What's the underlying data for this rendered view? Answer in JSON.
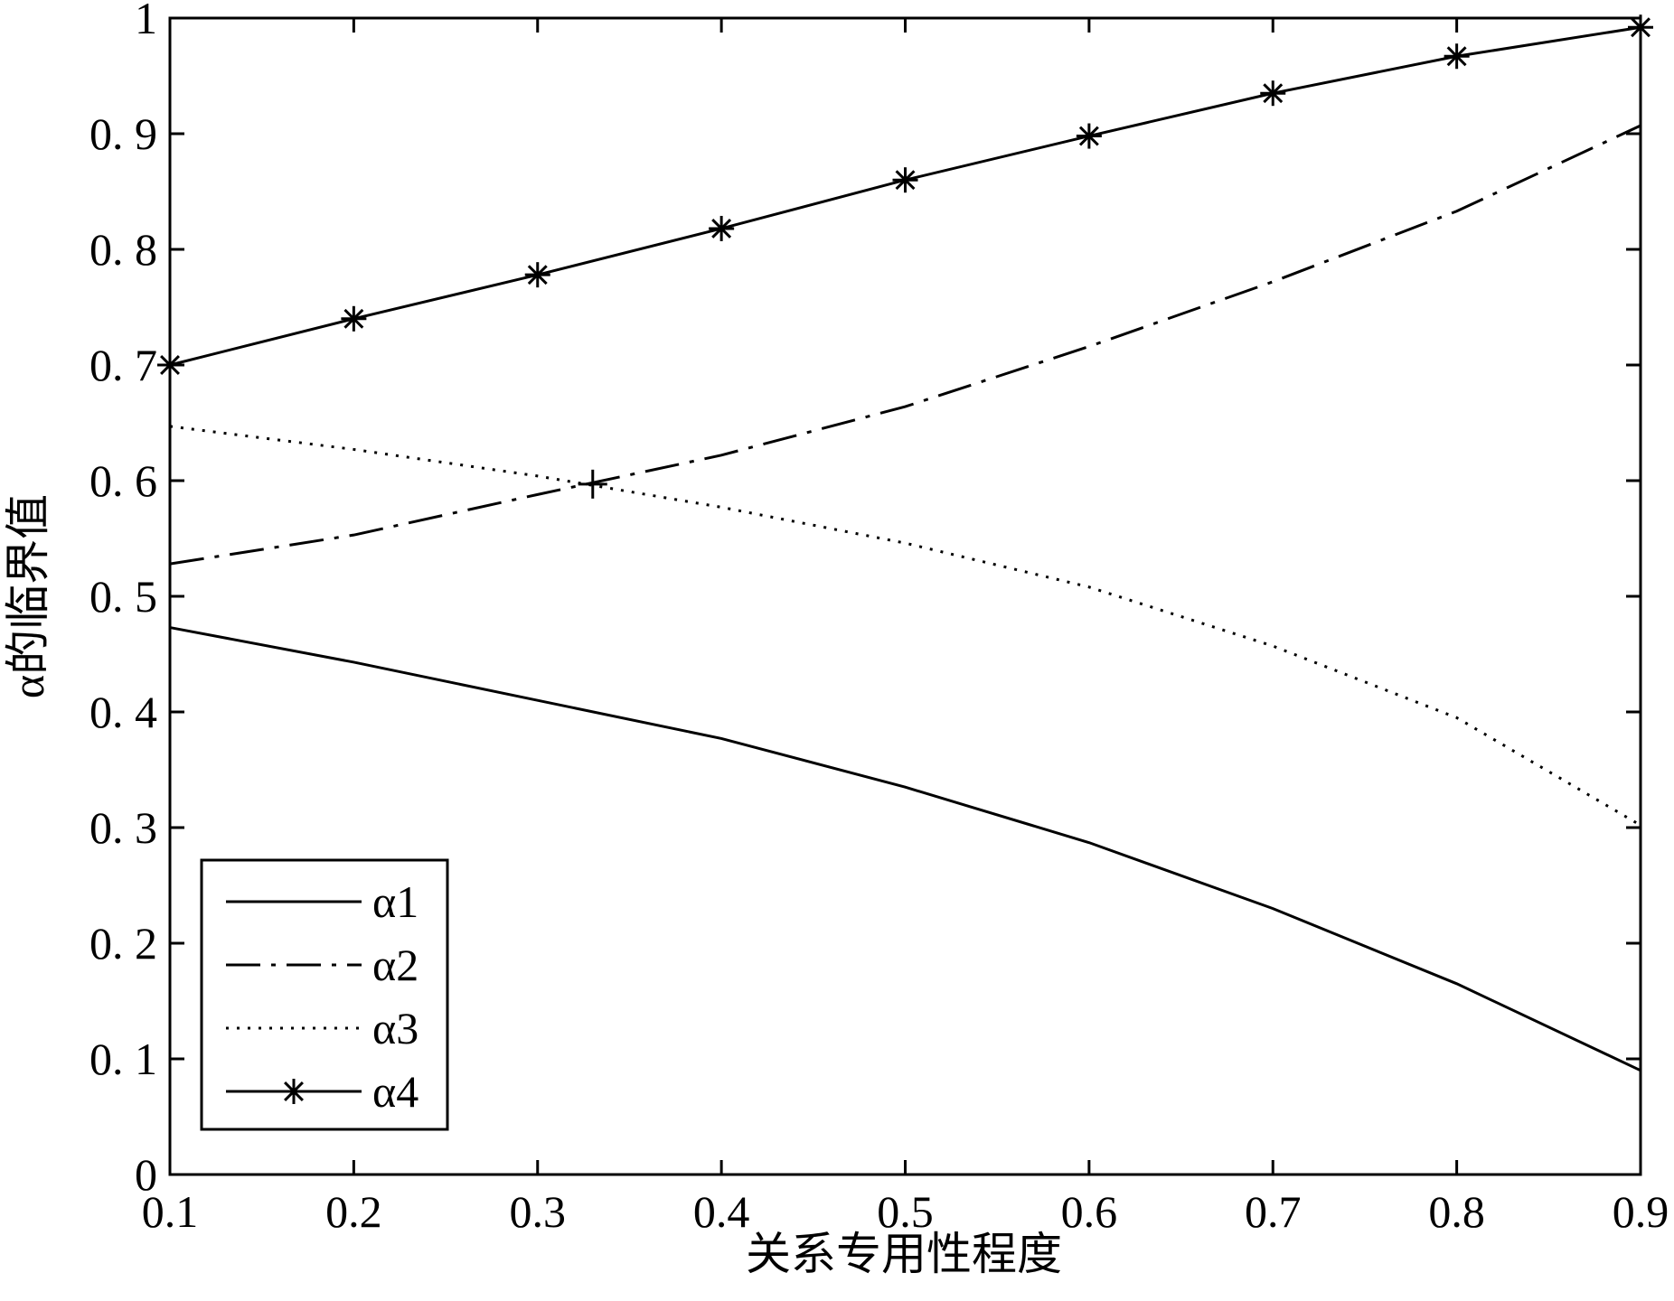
{
  "chart_data": {
    "type": "line",
    "title": "",
    "xlabel": "关系专用性程度",
    "ylabel": "α的临界值",
    "xlim": [
      0.1,
      0.9
    ],
    "ylim": [
      0,
      1
    ],
    "x_ticks": [
      "0.1",
      "0.2",
      "0.3",
      "0.4",
      "0.5",
      "0.6",
      "0.7",
      "0.8",
      "0.9"
    ],
    "y_ticks": [
      "0",
      "0. 1",
      "0. 2",
      "0. 3",
      "0. 4",
      "0. 5",
      "0. 6",
      "0. 7",
      "0. 8",
      "0. 9",
      "1"
    ],
    "grid": false,
    "legend_position": "bottom-left",
    "x": [
      0.1,
      0.2,
      0.3,
      0.4,
      0.5,
      0.6,
      0.7,
      0.8,
      0.9
    ],
    "series": [
      {
        "name": "α1",
        "style": "solid",
        "marker": "none",
        "values": [
          0.473,
          0.443,
          0.41,
          0.377,
          0.335,
          0.287,
          0.23,
          0.165,
          0.09
        ]
      },
      {
        "name": "α2",
        "style": "dashdot",
        "marker": "none",
        "values": [
          0.528,
          0.553,
          0.588,
          0.622,
          0.664,
          0.716,
          0.772,
          0.833,
          0.907
        ]
      },
      {
        "name": "α3",
        "style": "dotted",
        "marker": "none",
        "values": [
          0.647,
          0.627,
          0.604,
          0.577,
          0.546,
          0.508,
          0.457,
          0.395,
          0.302
        ]
      },
      {
        "name": "α4",
        "style": "solid",
        "marker": "star",
        "values": [
          0.7,
          0.74,
          0.778,
          0.818,
          0.86,
          0.898,
          0.935,
          0.967,
          0.992
        ]
      }
    ],
    "annotations": [
      {
        "type": "plus-marker",
        "x": 0.33,
        "y": 0.597
      }
    ],
    "colors": {
      "line": "#000000",
      "background": "#ffffff"
    }
  }
}
